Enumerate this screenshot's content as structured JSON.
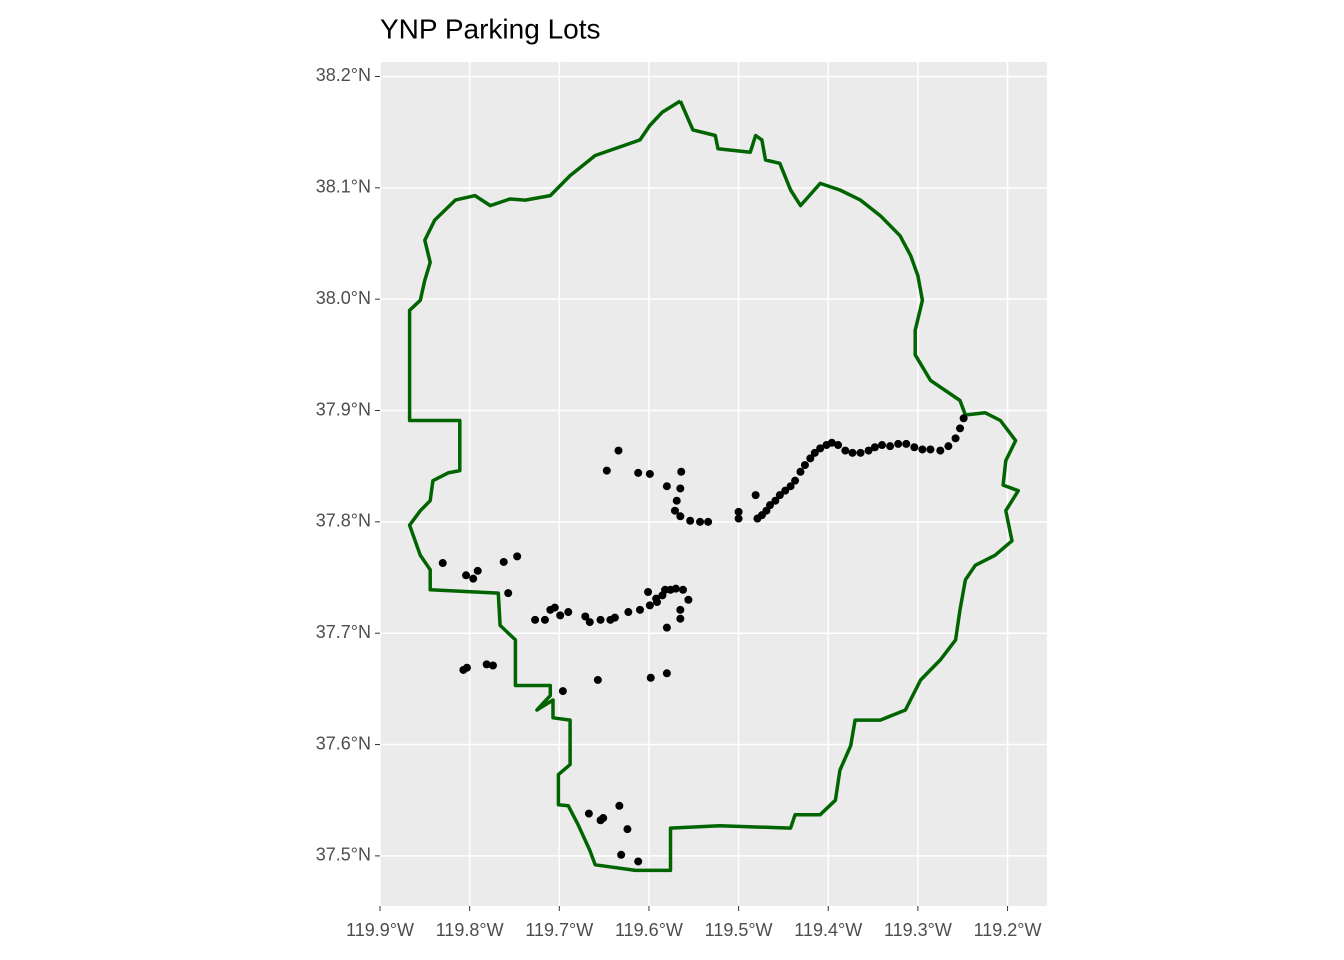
{
  "chart_data": {
    "type": "map",
    "title": "YNP Parking Lots",
    "xlim": [
      -119.9,
      -119.156
    ],
    "ylim": [
      37.455,
      38.213
    ],
    "grid": true,
    "xticks": [
      {
        "value": -119.9,
        "label": "119.9°W"
      },
      {
        "value": -119.8,
        "label": "119.8°W"
      },
      {
        "value": -119.7,
        "label": "119.7°W"
      },
      {
        "value": -119.6,
        "label": "119.6°W"
      },
      {
        "value": -119.5,
        "label": "119.5°W"
      },
      {
        "value": -119.4,
        "label": "119.4°W"
      },
      {
        "value": -119.3,
        "label": "119.3°W"
      },
      {
        "value": -119.2,
        "label": "119.2°W"
      }
    ],
    "yticks": [
      {
        "value": 37.5,
        "label": "37.5°N"
      },
      {
        "value": 37.6,
        "label": "37.6°N"
      },
      {
        "value": 37.7,
        "label": "37.7°N"
      },
      {
        "value": 37.8,
        "label": "37.8°N"
      },
      {
        "value": 37.9,
        "label": "37.9°N"
      },
      {
        "value": 38.0,
        "label": "38.0°N"
      },
      {
        "value": 38.1,
        "label": "38.1°N"
      },
      {
        "value": 38.2,
        "label": "38.2°N"
      }
    ],
    "boundary": {
      "color": "#006400",
      "lon": [
        -119.565,
        -119.551,
        -119.526,
        -119.523,
        -119.487,
        -119.481,
        -119.474,
        -119.47,
        -119.454,
        -119.442,
        -119.431,
        -119.409,
        -119.387,
        -119.364,
        -119.342,
        -119.32,
        -119.308,
        -119.3,
        -119.295,
        -119.303,
        -119.303,
        -119.286,
        -119.253,
        -119.247,
        -119.225,
        -119.208,
        -119.191,
        -119.202,
        -119.205,
        -119.188,
        -119.202,
        -119.195,
        -119.214,
        -119.236,
        -119.247,
        -119.253,
        -119.258,
        -119.275,
        -119.297,
        -119.314,
        -119.342,
        -119.37,
        -119.375,
        -119.387,
        -119.392,
        -119.409,
        -119.437,
        -119.442,
        -119.521,
        -119.576,
        -119.576,
        -119.615,
        -119.66,
        -119.666,
        -119.679,
        -119.69,
        -119.701,
        -119.701,
        -119.688,
        -119.688,
        -119.707,
        -119.707,
        -119.725,
        -119.71,
        -119.71,
        -119.749,
        -119.749,
        -119.766,
        -119.768,
        -119.844,
        -119.844,
        -119.855,
        -119.867,
        -119.855,
        -119.844,
        -119.841,
        -119.824,
        -119.811,
        -119.811,
        -119.867,
        -119.867,
        -119.855,
        -119.85,
        -119.844,
        -119.85,
        -119.839,
        -119.816,
        -119.794,
        -119.777,
        -119.755,
        -119.738,
        -119.71,
        -119.688,
        -119.66,
        -119.61,
        -119.599,
        -119.585,
        -119.565
      ],
      "lat": [
        38.178,
        38.152,
        38.147,
        38.135,
        38.132,
        38.147,
        38.143,
        38.125,
        38.122,
        38.098,
        38.084,
        38.104,
        38.098,
        38.089,
        38.075,
        38.057,
        38.039,
        38.021,
        37.999,
        37.972,
        37.95,
        37.927,
        37.909,
        37.896,
        37.898,
        37.891,
        37.873,
        37.855,
        37.833,
        37.828,
        37.81,
        37.783,
        37.77,
        37.761,
        37.748,
        37.721,
        37.694,
        37.676,
        37.658,
        37.631,
        37.622,
        37.622,
        37.599,
        37.577,
        37.55,
        37.537,
        37.537,
        37.525,
        37.527,
        37.525,
        37.487,
        37.487,
        37.492,
        37.505,
        37.528,
        37.545,
        37.546,
        37.573,
        37.582,
        37.622,
        37.624,
        37.64,
        37.631,
        37.644,
        37.653,
        37.653,
        37.694,
        37.707,
        37.736,
        37.739,
        37.757,
        37.77,
        37.797,
        37.81,
        37.819,
        37.837,
        37.844,
        37.846,
        37.891,
        37.891,
        37.99,
        37.999,
        38.017,
        38.033,
        38.053,
        38.071,
        38.089,
        38.093,
        38.084,
        38.09,
        38.089,
        38.093,
        38.111,
        38.129,
        38.143,
        38.156,
        38.168,
        38.178
      ]
    },
    "points": {
      "color": "#000000",
      "lon": [
        -119.479,
        -119.474,
        -119.469,
        -119.465,
        -119.459,
        -119.454,
        -119.448,
        -119.442,
        -119.437,
        -119.431,
        -119.426,
        -119.42,
        -119.415,
        -119.409,
        -119.402,
        -119.396,
        -119.389,
        -119.381,
        -119.373,
        -119.364,
        -119.355,
        -119.348,
        -119.34,
        -119.331,
        -119.322,
        -119.313,
        -119.304,
        -119.295,
        -119.286,
        -119.275,
        -119.266,
        -119.258,
        -119.253,
        -119.249,
        -119.481,
        -119.5,
        -119.5,
        -119.634,
        -119.647,
        -119.612,
        -119.599,
        -119.564,
        -119.58,
        -119.565,
        -119.569,
        -119.571,
        -119.565,
        -119.554,
        -119.543,
        -119.534,
        -119.727,
        -119.716,
        -119.71,
        -119.705,
        -119.699,
        -119.69,
        -119.671,
        -119.666,
        -119.654,
        -119.643,
        -119.638,
        -119.623,
        -119.61,
        -119.599,
        -119.591,
        -119.585,
        -119.582,
        -119.576,
        -119.57,
        -119.562,
        -119.556,
        -119.565,
        -119.58,
        -119.565,
        -119.592,
        -119.601,
        -119.83,
        -119.804,
        -119.796,
        -119.791,
        -119.762,
        -119.747,
        -119.757,
        -119.807,
        -119.803,
        -119.781,
        -119.774,
        -119.696,
        -119.657,
        -119.598,
        -119.58,
        -119.667,
        -119.654,
        -119.651,
        -119.633,
        -119.624,
        -119.631,
        -119.612
      ],
      "lat": [
        37.803,
        37.806,
        37.81,
        37.815,
        37.819,
        37.824,
        37.828,
        37.832,
        37.837,
        37.845,
        37.851,
        37.857,
        37.862,
        37.866,
        37.869,
        37.871,
        37.869,
        37.864,
        37.862,
        37.862,
        37.864,
        37.867,
        37.869,
        37.868,
        37.87,
        37.87,
        37.867,
        37.865,
        37.865,
        37.864,
        37.868,
        37.875,
        37.884,
        37.893,
        37.824,
        37.809,
        37.803,
        37.864,
        37.846,
        37.844,
        37.843,
        37.845,
        37.832,
        37.83,
        37.819,
        37.81,
        37.805,
        37.801,
        37.8,
        37.8,
        37.712,
        37.712,
        37.721,
        37.723,
        37.716,
        37.719,
        37.715,
        37.71,
        37.712,
        37.712,
        37.714,
        37.719,
        37.721,
        37.725,
        37.728,
        37.734,
        37.739,
        37.739,
        37.74,
        37.739,
        37.73,
        37.721,
        37.705,
        37.713,
        37.731,
        37.737,
        37.763,
        37.752,
        37.749,
        37.756,
        37.764,
        37.769,
        37.736,
        37.667,
        37.669,
        37.672,
        37.671,
        37.648,
        37.658,
        37.66,
        37.664,
        37.538,
        37.532,
        37.534,
        37.545,
        37.524,
        37.501,
        37.495
      ]
    }
  }
}
